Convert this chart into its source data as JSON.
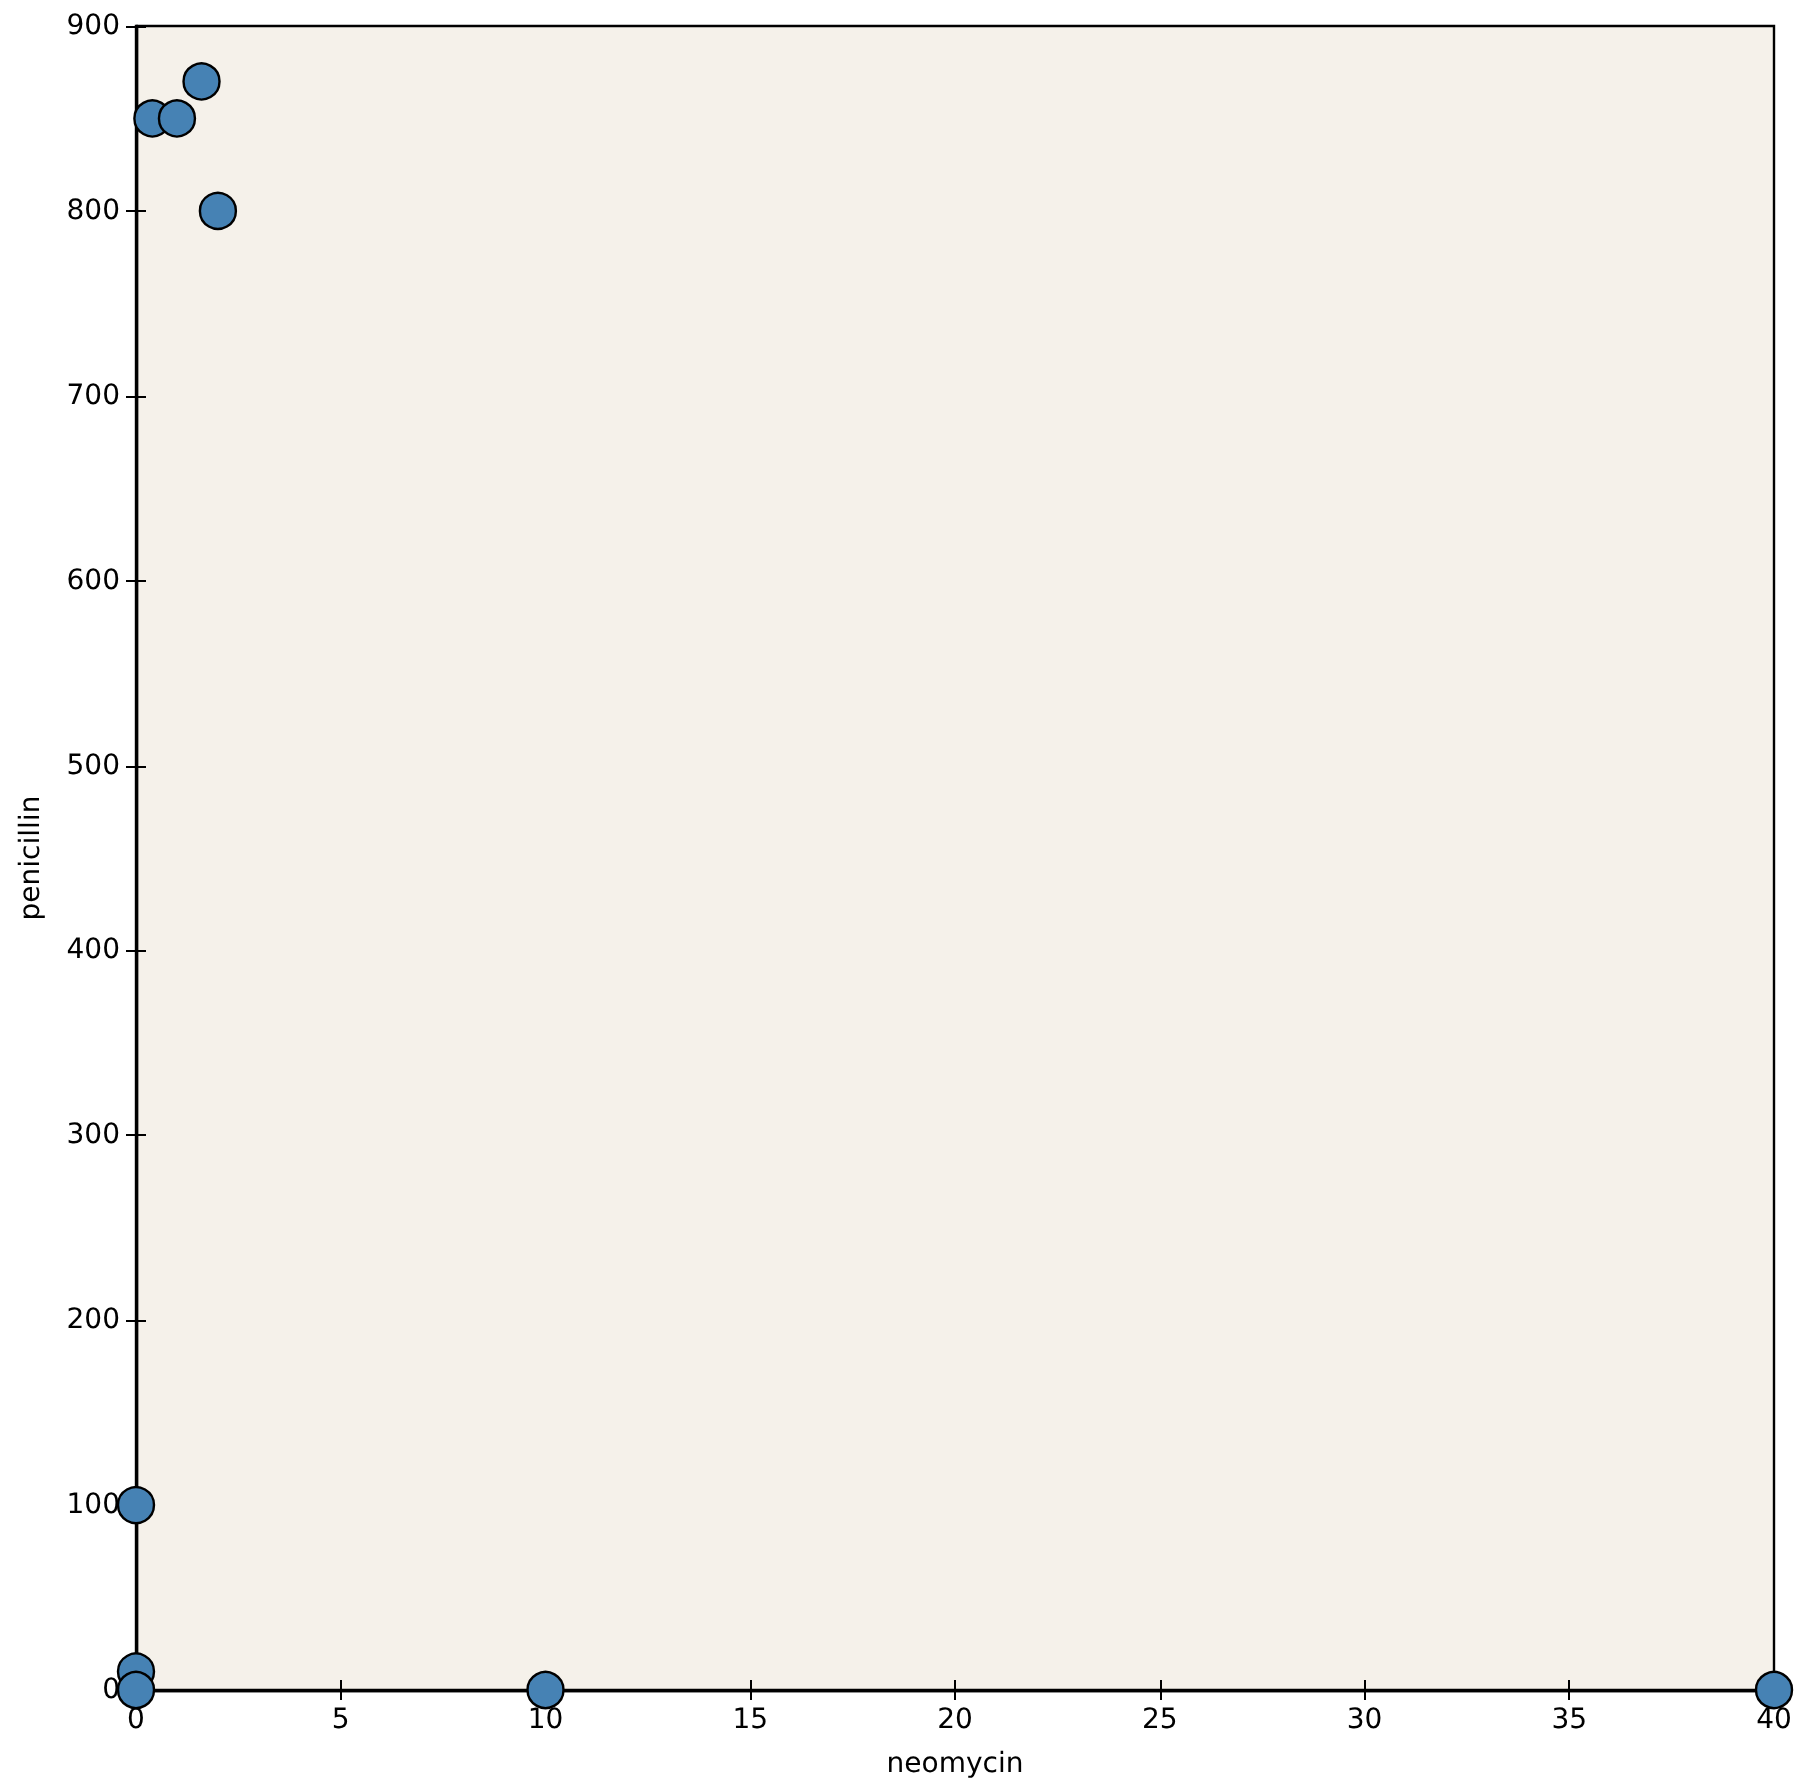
{
  "chart_data": {
    "type": "scatter",
    "xlabel": "neomycin",
    "ylabel": "penicillin",
    "x": [
      0.4,
      1.0,
      1.6,
      2.0,
      0,
      0,
      0,
      10,
      40
    ],
    "values": [
      850,
      850,
      870,
      800,
      100,
      10,
      0,
      0,
      0
    ],
    "color": "#4682b4",
    "marker": "circle",
    "grid": false,
    "xlim": [
      0,
      40
    ],
    "xticks": [
      0,
      5,
      10,
      15,
      20,
      25,
      30,
      35,
      40
    ],
    "ylim": [
      0,
      900
    ],
    "yticks": [
      0,
      100,
      200,
      300,
      400,
      500,
      600,
      700,
      800,
      900
    ]
  }
}
